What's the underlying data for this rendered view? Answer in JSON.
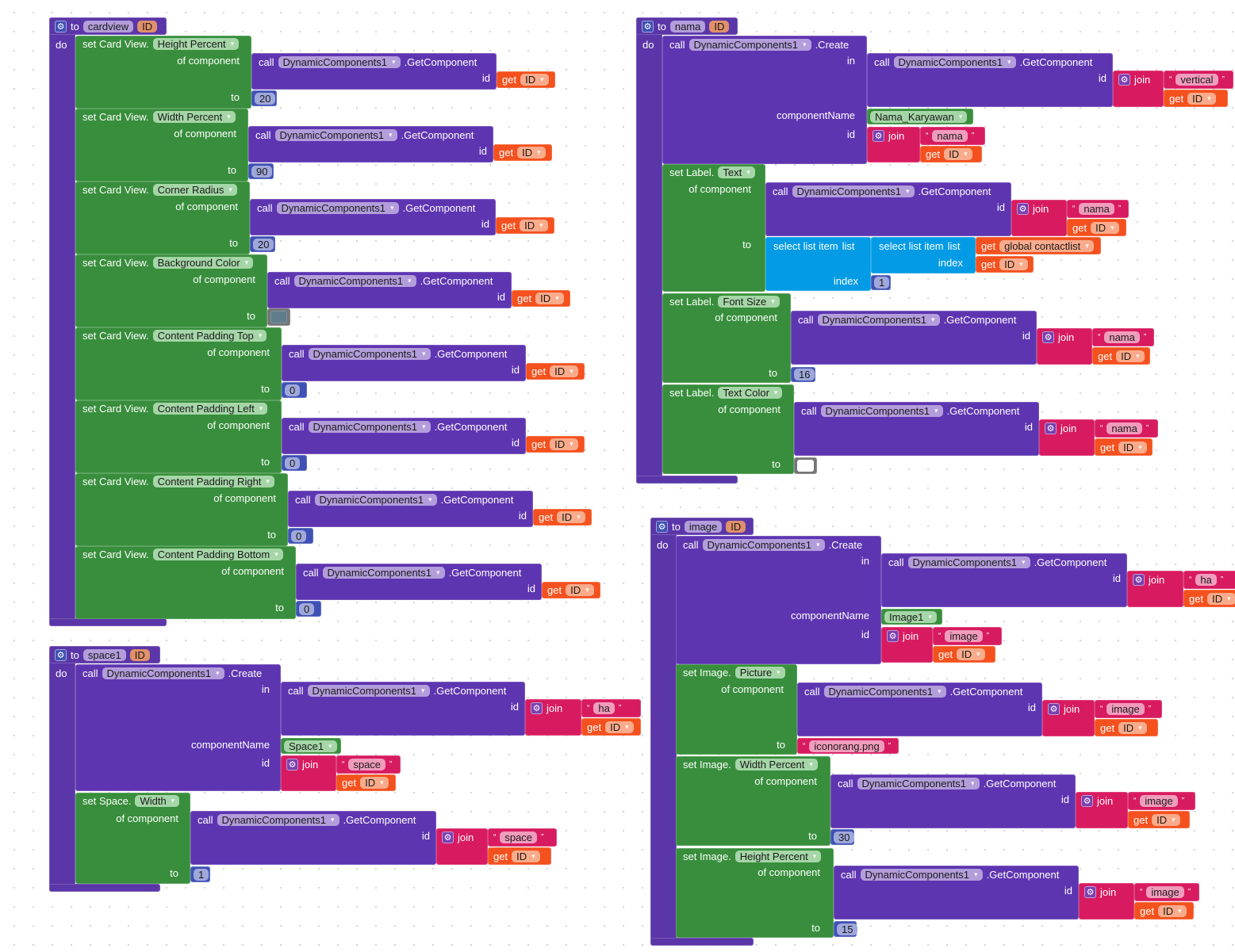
{
  "labels": {
    "to": "to",
    "do": "do",
    "call": "call",
    "get": "get",
    "join": "join",
    "id": "id",
    "in": "in",
    "of_component": "of component",
    "componentName": "componentName",
    "create": ".Create",
    "getComponent": ".GetComponent",
    "select_list_item": "select list item",
    "list": "list",
    "index": "index",
    "oq": "“",
    "cq": "”"
  },
  "component": "DynamicComponents1",
  "colors": {
    "proc": "#5b36a8",
    "call": "#5e35b1",
    "callField": "#b39ddb",
    "setter": "#388e3c",
    "setterField": "#a5d6a7",
    "num": "#3f51b5",
    "numField": "#9fa8da",
    "get": "#f4511e",
    "getField": "#f9ab8b",
    "text": "#d81b60",
    "textField": "#f19cbd",
    "list": "#039be5",
    "colorBlock": "#757575",
    "paramField": "#e0906a",
    "gear": "#3f51b5",
    "joinGear": "#7b3fb0"
  },
  "procedures": [
    {
      "name": "cardview",
      "param": "ID",
      "prefix": "set Card View.",
      "setters": [
        {
          "property": "Height Percent",
          "value": "20"
        },
        {
          "property": "Width Percent",
          "value": "90"
        },
        {
          "property": "Corner Radius",
          "value": "20"
        },
        {
          "property": "Background Color",
          "value_color": "#5f7d8c"
        },
        {
          "property": "Content Padding Top",
          "value": "0"
        },
        {
          "property": "Content Padding Left",
          "value": "0"
        },
        {
          "property": "Content Padding Right",
          "value": "0"
        },
        {
          "property": "Content Padding Bottom",
          "value": "0"
        }
      ]
    },
    {
      "name": "space1",
      "param": "ID",
      "create": {
        "join_text": "ha",
        "component_name": "Space1",
        "name_text": "space"
      },
      "setter": {
        "prefix": "set Space.",
        "property": "Width",
        "join_text": "space",
        "value": "1"
      }
    },
    {
      "name": "nama",
      "param": "ID",
      "create": {
        "join_text": "vertical",
        "component_name": "Nama_Karyawan",
        "name_text": "nama"
      },
      "setters": [
        {
          "prefix": "set Label.",
          "property": "Text",
          "join_text": "nama",
          "list_var": "global contactlist",
          "index": "1"
        },
        {
          "prefix": "set Label.",
          "property": "Font Size",
          "join_text": "nama",
          "value": "16"
        },
        {
          "prefix": "set Label.",
          "property": "Text Color",
          "join_text": "nama",
          "value_color": "#ffffff"
        }
      ]
    },
    {
      "name": "image",
      "param": "ID",
      "create": {
        "join_text": "ha",
        "component_name": "Image1",
        "name_text": "image"
      },
      "setters": [
        {
          "prefix": "set Image.",
          "property": "Picture",
          "join_text": "image",
          "value_text": "iconorang.png"
        },
        {
          "prefix": "set Image.",
          "property": "Width Percent",
          "join_text": "image",
          "value": "30"
        },
        {
          "prefix": "set Image.",
          "property": "Height Percent",
          "join_text": "image",
          "value": "15"
        }
      ]
    }
  ]
}
